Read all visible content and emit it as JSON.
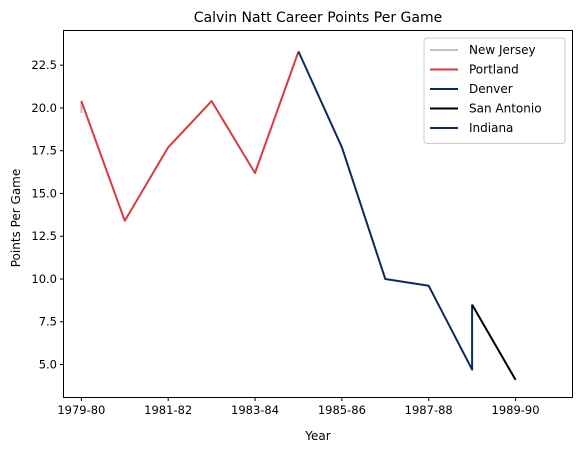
{
  "chart_data": {
    "type": "line",
    "title": "Calvin Natt Career Points Per Game",
    "xlabel": "Year",
    "ylabel": "Points Per Game",
    "xticks": [
      "1979-80",
      "1981-82",
      "1983-84",
      "1985-86",
      "1987-88",
      "1989-90"
    ],
    "yticks": [
      "5.0",
      "7.5",
      "10.0",
      "12.5",
      "15.0",
      "17.5",
      "20.0",
      "22.5"
    ],
    "xlim": [
      1978.6,
      1990.3
    ],
    "ylim": [
      3.1,
      24.5
    ],
    "grid": false,
    "legend_position": "upper right",
    "series": [
      {
        "name": "New Jersey",
        "color": "#c0c0c0",
        "points": [
          [
            1979,
            19.7
          ],
          [
            1979,
            20.4
          ]
        ]
      },
      {
        "name": "Portland",
        "color": "#d93a3f",
        "points": [
          [
            1979,
            20.4
          ],
          [
            1980,
            13.4
          ],
          [
            1981,
            17.7
          ],
          [
            1982,
            20.4
          ],
          [
            1983,
            16.2
          ],
          [
            1984,
            23.3
          ]
        ]
      },
      {
        "name": "Denver",
        "color": "#0d2a5e",
        "points": [
          [
            1984,
            23.3
          ],
          [
            1985,
            17.7
          ],
          [
            1986,
            10.0
          ],
          [
            1987,
            9.6
          ],
          [
            1988,
            4.7
          ],
          [
            1988,
            8.5
          ]
        ]
      },
      {
        "name": "San Antonio",
        "color": "#000000",
        "points": [
          [
            1988,
            8.5
          ],
          [
            1989,
            4.1
          ]
        ]
      },
      {
        "name": "Indiana",
        "color": "#0d2a5e",
        "points": []
      }
    ]
  }
}
